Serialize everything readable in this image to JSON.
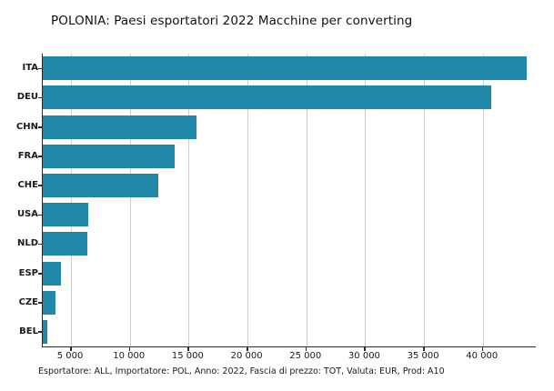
{
  "title": "POLONIA: Paesi esportatori 2022 Macchine per converting",
  "footnote": "Esportatore: ALL, Importatore: POL, Anno: 2022, Fascia di prezzo: TOT, Valuta: EUR, Prod: A10",
  "colors": {
    "bar": "#1f87a8",
    "grid": "#cfcfcf",
    "axis": "#2b2b2b",
    "text": "#111111",
    "background": "#ffffff"
  },
  "chart_data": {
    "type": "bar",
    "orientation": "horizontal",
    "title": "POLONIA: Paesi esportatori 2022 Macchine per converting",
    "categories": [
      "ITA",
      "DEU",
      "CHN",
      "FRA",
      "CHE",
      "USA",
      "NLD",
      "ESP",
      "CZE",
      "BEL"
    ],
    "values": [
      43700,
      40700,
      15700,
      13800,
      12400,
      6450,
      6350,
      4150,
      3650,
      3000
    ],
    "xlabel": "",
    "ylabel": "",
    "xlim": [
      2600,
      44500
    ],
    "xticks": [
      5000,
      10000,
      15000,
      20000,
      25000,
      30000,
      35000,
      40000
    ],
    "xtick_labels": [
      "5 000",
      "10 000",
      "15 000",
      "20 000",
      "25 000",
      "30 000",
      "35 000",
      "40 000"
    ],
    "grid": true,
    "legend": false,
    "footnote": "Esportatore: ALL, Importatore: POL, Anno: 2022, Fascia di prezzo: TOT, Valuta: EUR, Prod: A10"
  }
}
